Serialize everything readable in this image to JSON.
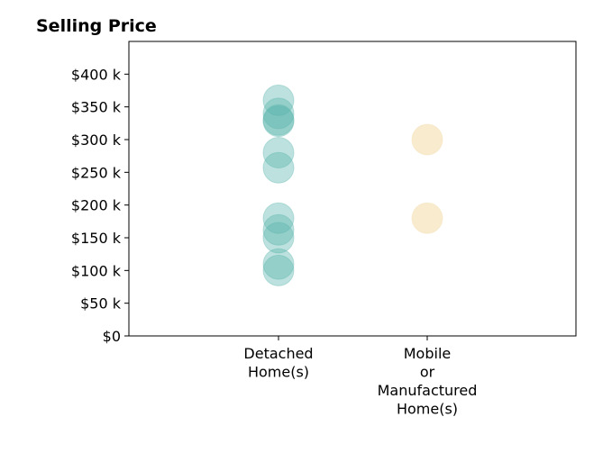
{
  "chart_data": {
    "type": "scatter",
    "title": "Selling Price",
    "xlabel": "",
    "ylabel": "",
    "categories": [
      "Detached Home(s)",
      "Mobile or Manufactured Home(s)"
    ],
    "category_tick_lines": [
      [
        "Detached",
        "Home(s)"
      ],
      [
        "Mobile",
        "or",
        "Manufactured",
        "Home(s)"
      ]
    ],
    "yticks": [
      0,
      50000,
      100000,
      150000,
      200000,
      250000,
      300000,
      350000,
      400000
    ],
    "ytick_labels": [
      "$0",
      "$50 k",
      "$100 k",
      "$150 k",
      "$200 k",
      "$250 k",
      "$300 k",
      "$350 k",
      "$400 k"
    ],
    "ylim": [
      0,
      450000
    ],
    "grid": false,
    "legend": "none",
    "series": [
      {
        "category": "Detached Home(s)",
        "color": "#5ab4ac",
        "values": [
          360000,
          340000,
          330000,
          328000,
          280000,
          257000,
          180000,
          162000,
          150000,
          110000,
          100000
        ]
      },
      {
        "category": "Mobile or Manufactured Home(s)",
        "color": "#f2dba6",
        "values": [
          300000,
          180000
        ]
      }
    ]
  }
}
